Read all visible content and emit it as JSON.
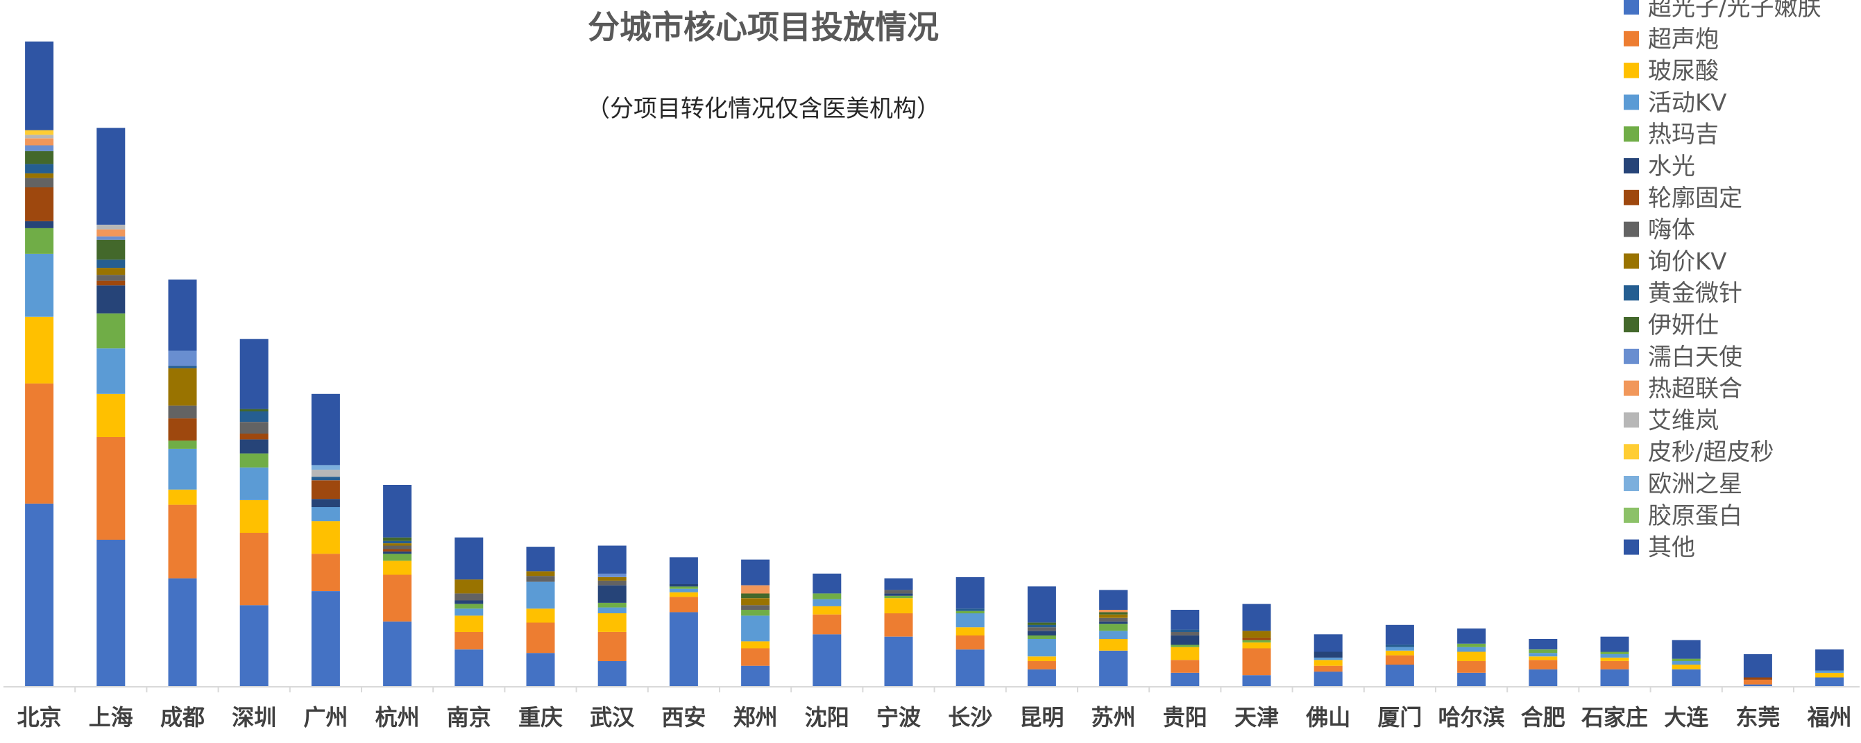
{
  "chart_data": {
    "type": "bar",
    "stacked": true,
    "title": "分城市核心项目投放情况",
    "subtitle": "（分项目转化情况仅含医美机构）",
    "legend_position": "right",
    "grid": false,
    "categories": [
      "北京",
      "上海",
      "成都",
      "深圳",
      "广州",
      "杭州",
      "南京",
      "重庆",
      "武汉",
      "西安",
      "郑州",
      "沈阳",
      "宁波",
      "长沙",
      "昆明",
      "苏州",
      "贵阳",
      "天津",
      "佛山",
      "厦门",
      "哈尔滨",
      "合肥",
      "石家庄",
      "大连",
      "东莞",
      "福州"
    ],
    "ylim": [
      0,
      560
    ],
    "series": [
      {
        "name": "超光子/光子嫩肤",
        "color": "#4472C4",
        "values": [
          157,
          126,
          93,
          70,
          82,
          56,
          32,
          29,
          22,
          64,
          18,
          45,
          43,
          32,
          15,
          31,
          12,
          10,
          13,
          19,
          12,
          15,
          15,
          15,
          2,
          8
        ]
      },
      {
        "name": "超声炮",
        "color": "#ED7D31",
        "values": [
          103,
          88,
          63,
          62,
          32,
          40,
          15,
          26,
          25,
          13,
          15,
          17,
          20,
          12,
          7,
          0,
          11,
          23,
          5,
          8,
          10,
          8,
          7,
          0,
          4,
          0
        ]
      },
      {
        "name": "玻尿酸",
        "color": "#FFC000",
        "values": [
          57,
          37,
          13,
          28,
          28,
          12,
          14,
          12,
          16,
          4,
          6,
          7,
          13,
          7,
          4,
          10,
          11,
          5,
          5,
          4,
          8,
          3,
          3,
          4,
          0,
          4
        ]
      },
      {
        "name": "活动KV",
        "color": "#5B9BD5",
        "values": [
          54,
          39,
          35,
          28,
          12,
          0,
          6,
          23,
          5,
          3,
          22,
          6,
          0,
          12,
          15,
          7,
          0,
          0,
          2,
          3,
          4,
          3,
          3,
          3,
          0,
          2
        ]
      },
      {
        "name": "热玛吉",
        "color": "#70AD47",
        "values": [
          22,
          30,
          7,
          12,
          0,
          6,
          4,
          0,
          4,
          2,
          5,
          5,
          2,
          2,
          3,
          6,
          2,
          2,
          0,
          0,
          3,
          3,
          2,
          2,
          0,
          0
        ]
      },
      {
        "name": "水光",
        "color": "#264478",
        "values": [
          6,
          24,
          0,
          12,
          7,
          2,
          3,
          0,
          15,
          2,
          0,
          0,
          2,
          0,
          4,
          2,
          8,
          0,
          5,
          0,
          0,
          0,
          0,
          0,
          0,
          0
        ]
      },
      {
        "name": "轮廓固定",
        "color": "#9E480E",
        "values": [
          29,
          4,
          19,
          5,
          16,
          2,
          0,
          0,
          0,
          0,
          0,
          0,
          0,
          0,
          0,
          0,
          0,
          2,
          0,
          0,
          0,
          0,
          0,
          0,
          2,
          0
        ]
      },
      {
        "name": "嗨体",
        "color": "#636363",
        "values": [
          8,
          5,
          11,
          10,
          0,
          3,
          6,
          5,
          4,
          0,
          4,
          0,
          3,
          0,
          3,
          3,
          3,
          0,
          0,
          0,
          0,
          0,
          0,
          0,
          0,
          0
        ]
      },
      {
        "name": "询价KV",
        "color": "#997300",
        "values": [
          4,
          6,
          32,
          0,
          0,
          2,
          12,
          4,
          3,
          0,
          6,
          0,
          0,
          0,
          0,
          3,
          0,
          6,
          0,
          0,
          0,
          0,
          0,
          0,
          0,
          0
        ]
      },
      {
        "name": "黄金微针",
        "color": "#255E91",
        "values": [
          8,
          7,
          2,
          9,
          3,
          2,
          0,
          0,
          0,
          0,
          0,
          0,
          0,
          2,
          2,
          0,
          2,
          0,
          0,
          2,
          0,
          0,
          0,
          0,
          0,
          0
        ]
      },
      {
        "name": "伊妍仕",
        "color": "#43682B",
        "values": [
          11,
          17,
          0,
          2,
          0,
          3,
          0,
          0,
          0,
          0,
          4,
          0,
          0,
          0,
          2,
          2,
          0,
          0,
          0,
          0,
          0,
          0,
          0,
          0,
          0,
          0
        ]
      },
      {
        "name": "濡白天使",
        "color": "#698ED0",
        "values": [
          5,
          3,
          13,
          0,
          0,
          0,
          0,
          0,
          3,
          0,
          0,
          0,
          0,
          0,
          0,
          0,
          0,
          0,
          0,
          0,
          0,
          0,
          0,
          0,
          0,
          0
        ]
      },
      {
        "name": "热超联合",
        "color": "#F1975A",
        "values": [
          6,
          6,
          0,
          0,
          0,
          0,
          0,
          0,
          0,
          0,
          7,
          0,
          0,
          0,
          0,
          2,
          0,
          0,
          0,
          0,
          0,
          0,
          0,
          0,
          0,
          0
        ]
      },
      {
        "name": "艾维岚",
        "color": "#B7B7B7",
        "values": [
          3,
          4,
          0,
          0,
          6,
          0,
          0,
          0,
          0,
          0,
          0,
          0,
          0,
          0,
          0,
          0,
          0,
          0,
          0,
          0,
          0,
          0,
          0,
          0,
          0,
          0
        ]
      },
      {
        "name": "皮秒/超皮秒",
        "color": "#FFCD33",
        "values": [
          4,
          0,
          0,
          0,
          0,
          0,
          0,
          0,
          0,
          0,
          0,
          0,
          0,
          0,
          0,
          0,
          0,
          0,
          0,
          0,
          0,
          0,
          0,
          0,
          0,
          0
        ]
      },
      {
        "name": "欧洲之星",
        "color": "#7CAFDD",
        "values": [
          0,
          0,
          0,
          0,
          4,
          0,
          0,
          0,
          0,
          0,
          0,
          0,
          0,
          0,
          0,
          0,
          0,
          0,
          0,
          0,
          0,
          0,
          0,
          0,
          0,
          0
        ]
      },
      {
        "name": "胶原蛋白",
        "color": "#8CC168",
        "values": [
          0,
          0,
          0,
          0,
          0,
          0,
          0,
          0,
          0,
          0,
          0,
          0,
          0,
          0,
          0,
          0,
          0,
          0,
          0,
          0,
          0,
          0,
          0,
          0,
          0,
          0
        ]
      },
      {
        "name": "其他",
        "color": "#2F55A4",
        "values": [
          76,
          83,
          61,
          60,
          61,
          45,
          36,
          21,
          24,
          23,
          22,
          17,
          10,
          27,
          31,
          17,
          17,
          23,
          15,
          17,
          13,
          9,
          13,
          16,
          20,
          18
        ]
      }
    ]
  }
}
